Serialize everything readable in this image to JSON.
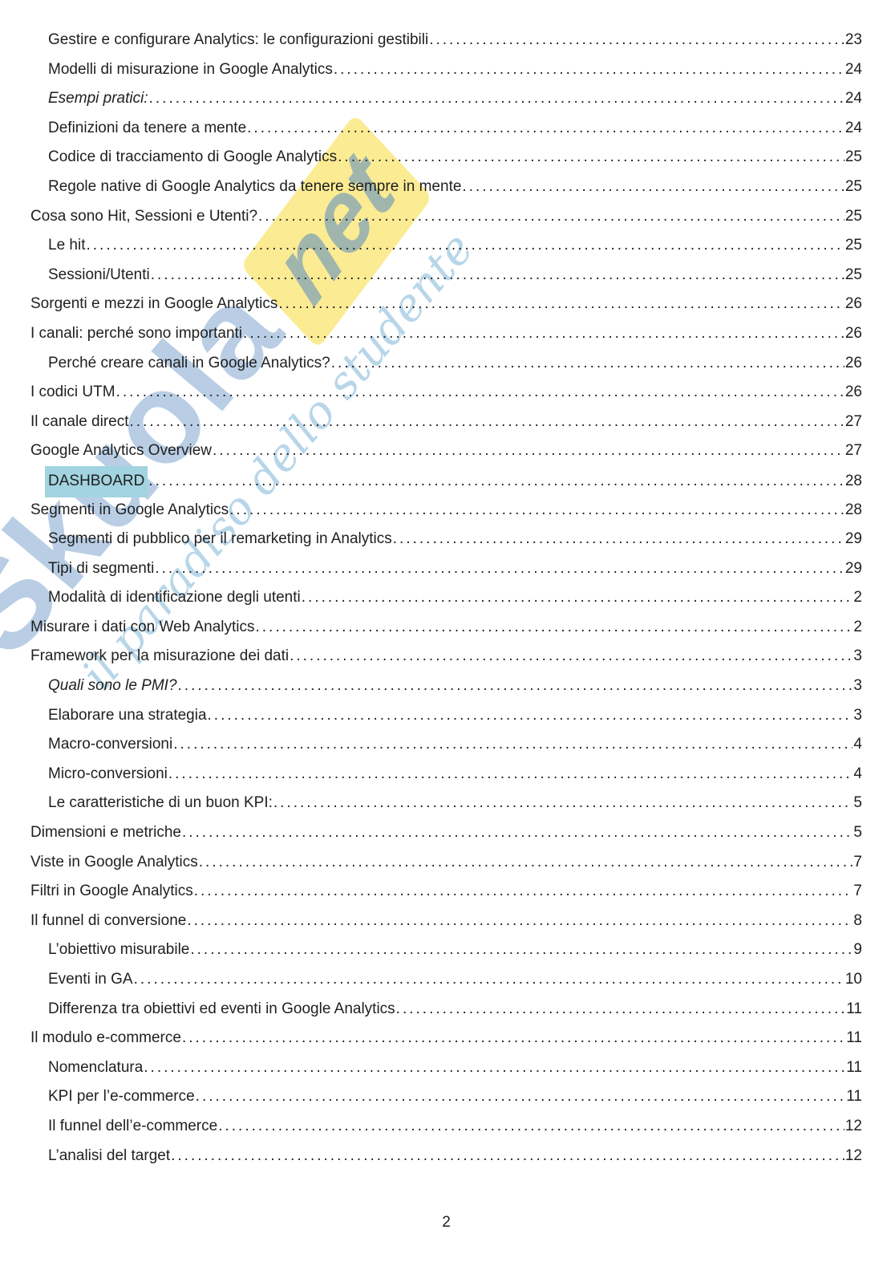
{
  "page": {
    "footer_page_number": "2"
  },
  "watermark": {
    "brand": "Skuola",
    "brand_suffix": "net",
    "tagline": "il paradiso dello studente",
    "colors": {
      "brand_blue": "#2c6ab1",
      "banner_yellow": "#f8de50",
      "script_blue": "#7db4d7"
    }
  },
  "colors": {
    "text": "#1f1f1f",
    "highlight": "#a2d3e0"
  },
  "toc": {
    "entries": [
      {
        "label": "Gestire e configurare Analytics: le configurazioni gestibili",
        "page": "23",
        "level": 2
      },
      {
        "label": "Modelli di misurazione in Google Analytics",
        "page": "24",
        "level": 2
      },
      {
        "label": "Esempi pratici:",
        "page": "24",
        "level": 2,
        "italic": true
      },
      {
        "label": "Definizioni da tenere a mente",
        "page": "24",
        "level": 2
      },
      {
        "label": "Codice di tracciamento di Google Analytics",
        "page": "25",
        "level": 2
      },
      {
        "label": "Regole native di Google Analytics da tenere sempre in mente",
        "page": "25",
        "level": 2
      },
      {
        "label": "Cosa sono Hit, Sessioni e Utenti?",
        "page": "25",
        "level": 1
      },
      {
        "label": "Le hit",
        "page": "25",
        "level": 2
      },
      {
        "label": "Sessioni/Utenti",
        "page": "25",
        "level": 2
      },
      {
        "label": "Sorgenti e mezzi in Google Analytics",
        "page": "26",
        "level": 1
      },
      {
        "label": "I canali: perché sono importanti",
        "page": "26",
        "level": 1
      },
      {
        "label": "Perché creare canali in Google Analytics?",
        "page": "26",
        "level": 2
      },
      {
        "label": "I codici UTM",
        "page": "26",
        "level": 1
      },
      {
        "label": "Il canale direct",
        "page": "27",
        "level": 1
      },
      {
        "label": "Google Analytics Overview",
        "page": "27",
        "level": 1
      },
      {
        "label": "DASHBOARD",
        "page": "28",
        "level": 2,
        "highlight": true
      },
      {
        "label": "Segmenti in Google Analytics",
        "page": "28",
        "level": 1
      },
      {
        "label": "Segmenti di pubblico per il remarketing in Analytics",
        "page": "29",
        "level": 2
      },
      {
        "label": "Tipi di segmenti",
        "page": "29",
        "level": 2
      },
      {
        "label": "Modalità di identificazione degli utenti",
        "page": "2",
        "level": 2
      },
      {
        "label": "Misurare i dati con Web Analytics",
        "page": "2",
        "level": 1
      },
      {
        "label": "Framework per la misurazione dei dati",
        "page": "3",
        "level": 1
      },
      {
        "label": "Quali sono le PMI?",
        "page": "3",
        "level": 2,
        "italic": true
      },
      {
        "label": "Elaborare una strategia",
        "page": "3",
        "level": 2
      },
      {
        "label": "Macro-conversioni",
        "page": "4",
        "level": 2
      },
      {
        "label": "Micro-conversioni",
        "page": "4",
        "level": 2
      },
      {
        "label": "Le caratteristiche di un buon KPI:",
        "page": "5",
        "level": 2
      },
      {
        "label": "Dimensioni e metriche",
        "page": "5",
        "level": 1
      },
      {
        "label": "Viste in Google Analytics",
        "page": "7",
        "level": 1
      },
      {
        "label": "Filtri in Google Analytics",
        "page": "7",
        "level": 1
      },
      {
        "label": "Il funnel di conversione",
        "page": "8",
        "level": 1
      },
      {
        "label": "L’obiettivo misurabile",
        "page": "9",
        "level": 2
      },
      {
        "label": "Eventi in GA",
        "page": "10",
        "level": 2
      },
      {
        "label": "Differenza tra obiettivi ed eventi in Google Analytics",
        "page": "11",
        "level": 2
      },
      {
        "label": "Il modulo e-commerce",
        "page": "11",
        "level": 1
      },
      {
        "label": "Nomenclatura",
        "page": "11",
        "level": 2
      },
      {
        "label": "KPI per l’e-commerce",
        "page": "11",
        "level": 2
      },
      {
        "label": "Il funnel dell’e-commerce",
        "page": "12",
        "level": 2
      },
      {
        "label": "L’analisi del target",
        "page": "12",
        "level": 2
      }
    ]
  }
}
